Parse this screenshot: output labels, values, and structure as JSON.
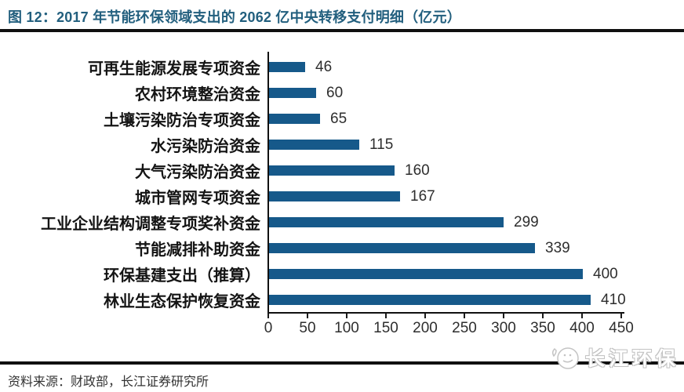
{
  "title": "图 12：2017 年节能环保领域支出的 2062 亿中央转移支付明细（亿元）",
  "source": "资料来源：财政部，长江证券研究所",
  "watermark": {
    "brand": "长江环保",
    "icon": "dolphin-circle-icon"
  },
  "colors": {
    "bar": "#16598A",
    "title": "#225F7E",
    "axis": "#111111",
    "watermark_outline": "#c2c2c2"
  },
  "chart_data": {
    "type": "bar",
    "orientation": "horizontal",
    "title": "图 12：2017 年节能环保领域支出的 2062 亿中央转移支付明细（亿元）",
    "categories": [
      "可再生能源发展专项资金",
      "农村环境整治资金",
      "土壤污染防治专项资金",
      "水污染防治资金",
      "大气污染防治资金",
      "城市管网专项资金",
      "工业企业结构调整专项奖补资金",
      "节能减排补助资金",
      "环保基建支出（推算）",
      "林业生态保护恢复资金"
    ],
    "values": [
      46,
      60,
      65,
      115,
      160,
      167,
      299,
      339,
      400,
      410
    ],
    "value_labels": [
      "46",
      "60",
      "65",
      "115",
      "160",
      "167",
      "299",
      "339",
      "400",
      "410"
    ],
    "xlabel": "",
    "ylabel": "",
    "xlim": [
      0,
      450
    ],
    "xticks": [
      0,
      50,
      100,
      150,
      200,
      250,
      300,
      350,
      400,
      450
    ],
    "grid": false,
    "legend": false
  }
}
